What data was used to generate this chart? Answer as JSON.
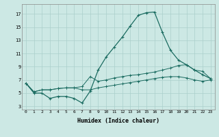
{
  "xlabel": "Humidex (Indice chaleur)",
  "ylabel": "",
  "background_color": "#cce8e4",
  "grid_color": "#aacfcb",
  "line_color": "#1a6b60",
  "xlim": [
    -0.5,
    23.5
  ],
  "ylim": [
    2.5,
    18.5
  ],
  "xticks": [
    0,
    1,
    2,
    3,
    4,
    5,
    6,
    7,
    8,
    9,
    10,
    11,
    12,
    13,
    14,
    15,
    16,
    17,
    18,
    19,
    20,
    21,
    22,
    23
  ],
  "yticks": [
    3,
    5,
    7,
    9,
    11,
    13,
    15,
    17
  ],
  "series1_x": [
    0,
    1,
    2,
    3,
    4,
    5,
    6,
    7,
    8,
    9,
    10,
    11,
    12,
    13,
    14,
    15,
    16,
    17,
    18,
    19,
    20,
    21,
    22,
    23
  ],
  "series1_y": [
    6.5,
    5.0,
    5.0,
    4.2,
    4.5,
    4.5,
    4.2,
    3.5,
    5.3,
    8.5,
    10.5,
    12.0,
    13.5,
    15.2,
    16.8,
    17.2,
    17.3,
    14.2,
    11.5,
    10.0,
    9.3,
    8.5,
    7.8,
    7.2
  ],
  "series2_x": [
    0,
    1,
    2,
    3,
    4,
    5,
    6,
    7,
    8,
    9,
    10,
    11,
    12,
    13,
    14,
    15,
    16,
    17,
    18,
    19,
    20,
    21,
    22,
    23
  ],
  "series2_y": [
    6.5,
    5.2,
    5.5,
    5.5,
    5.7,
    5.8,
    5.8,
    6.0,
    7.5,
    6.8,
    7.0,
    7.3,
    7.5,
    7.7,
    7.8,
    8.0,
    8.2,
    8.5,
    8.8,
    9.2,
    9.3,
    8.5,
    8.3,
    7.2
  ],
  "series3_x": [
    0,
    1,
    2,
    3,
    4,
    5,
    6,
    7,
    8,
    9,
    10,
    11,
    12,
    13,
    14,
    15,
    16,
    17,
    18,
    19,
    20,
    21,
    22,
    23
  ],
  "series3_y": [
    6.5,
    5.2,
    5.5,
    5.5,
    5.7,
    5.8,
    5.8,
    5.5,
    5.5,
    5.8,
    6.0,
    6.2,
    6.4,
    6.6,
    6.8,
    7.0,
    7.2,
    7.4,
    7.5,
    7.5,
    7.3,
    7.0,
    6.8,
    7.0
  ]
}
